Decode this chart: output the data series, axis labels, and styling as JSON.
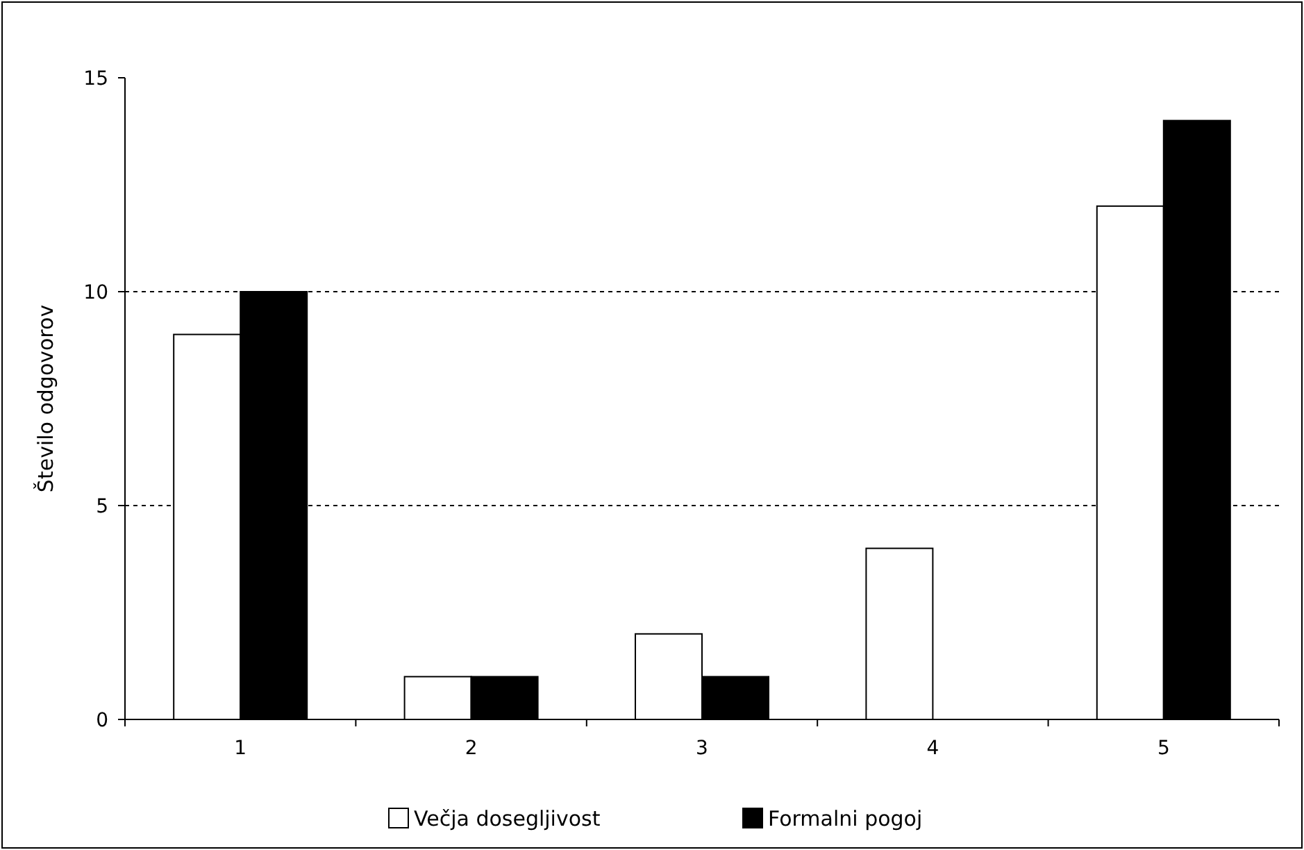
{
  "chart_data": {
    "type": "bar",
    "ylabel": "Število odgovorov",
    "categories": [
      "1",
      "2",
      "3",
      "4",
      "5"
    ],
    "series": [
      {
        "name": "Večja dosegljivost",
        "color": "#ffffff",
        "values": [
          9,
          1,
          2,
          4,
          12
        ]
      },
      {
        "name": "Formalni pogoj",
        "color": "#000000",
        "values": [
          10,
          1,
          1,
          0,
          14
        ]
      }
    ],
    "ylim": [
      0,
      15
    ],
    "yticks": [
      0,
      5,
      10,
      15
    ],
    "grid": "y",
    "legend": "bottom"
  }
}
